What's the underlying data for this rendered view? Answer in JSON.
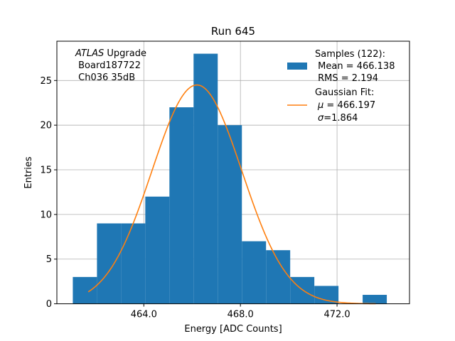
{
  "chart_data": {
    "type": "bar",
    "title": "Run 645",
    "xlabel": "Energy [ADC Counts]",
    "ylabel": "Entries",
    "xlim": [
      460.4,
      475.0
    ],
    "ylim": [
      0,
      29.4
    ],
    "xticks": [
      464.0,
      468.0,
      472.0
    ],
    "xtick_labels": [
      "464.0",
      "468.0",
      "472.0"
    ],
    "yticks": [
      0,
      5,
      10,
      15,
      20,
      25
    ],
    "ytick_labels": [
      "0",
      "5",
      "10",
      "15",
      "20",
      "25"
    ],
    "grid": true,
    "histogram": {
      "name": "Samples",
      "color": "#1f77b4",
      "bin_edges": [
        461.06,
        462.06,
        463.06,
        464.06,
        465.06,
        466.06,
        467.06,
        468.06,
        469.06,
        470.06,
        471.06,
        472.06,
        473.06,
        474.06
      ],
      "counts": [
        3,
        9,
        9,
        12,
        22,
        28,
        20,
        7,
        6,
        3,
        2,
        0,
        1
      ]
    },
    "fit": {
      "name": "Gaussian Fit",
      "color": "#ff7f0e",
      "amplitude": 24.5,
      "mean": 466.197,
      "sigma": 1.864,
      "x_range": [
        461.7,
        473.6
      ]
    },
    "annotation": {
      "experiment": "ATLAS",
      "experiment_suffix": " Upgrade",
      "board": " Board187722",
      "channel": " Ch036 35dB"
    },
    "legend": {
      "location": "top-right",
      "samples_line1": "Samples (122):",
      "samples_line2": " Mean = 466.138",
      "samples_line3": " RMS = 2.194",
      "fit_line1": "Gaussian Fit:",
      "fit_mu_symbol": "μ",
      "fit_mu_value": " = 466.197",
      "fit_sigma_symbol": "σ",
      "fit_sigma_value": "=1.864"
    }
  }
}
